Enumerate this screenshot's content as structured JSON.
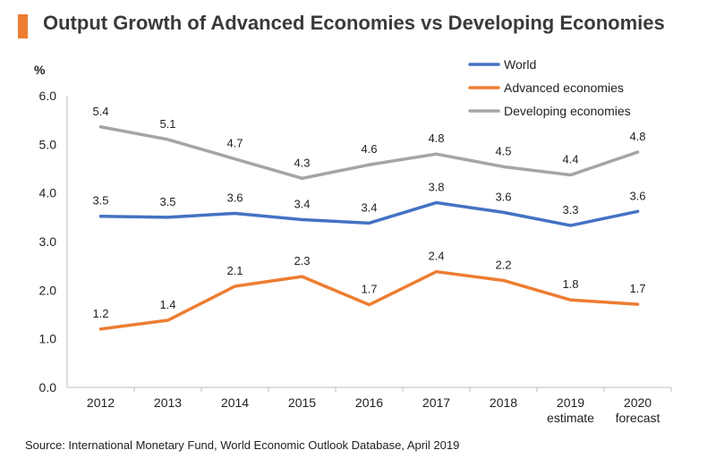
{
  "title": "Output Growth of Advanced Economies vs Developing Economies",
  "source": "Source: International Monetary Fund, World Economic Outlook Database, April 2019",
  "colors": {
    "accent": "#ed7d31",
    "world": "#4472c4",
    "advanced": "#ed7d31",
    "developing": "#a5a5a5"
  },
  "chart_data": {
    "type": "line",
    "ylabel": "%",
    "ylim": [
      0,
      6
    ],
    "yticks": [
      "0.0",
      "1.0",
      "2.0",
      "3.0",
      "4.0",
      "5.0",
      "6.0"
    ],
    "categories": [
      "2012",
      "2013",
      "2014",
      "2015",
      "2016",
      "2017",
      "2018",
      "2019",
      "2020"
    ],
    "category_sublabels": [
      "",
      "",
      "",
      "",
      "",
      "",
      "",
      "estimate",
      "forecast"
    ],
    "legend_position": "top-right",
    "grid": false,
    "series": [
      {
        "name": "World",
        "color": "#4472c4",
        "values": [
          3.52,
          3.5,
          3.58,
          3.45,
          3.38,
          3.8,
          3.6,
          3.33,
          3.62
        ],
        "labels": [
          "3.5",
          "3.5",
          "3.6",
          "3.4",
          "3.4",
          "3.8",
          "3.6",
          "3.3",
          "3.6"
        ]
      },
      {
        "name": "Advanced economies",
        "color": "#ed7d31",
        "values": [
          1.2,
          1.38,
          2.08,
          2.28,
          1.7,
          2.38,
          2.2,
          1.8,
          1.71
        ],
        "labels": [
          "1.2",
          "1.4",
          "2.1",
          "2.3",
          "1.7",
          "2.4",
          "2.2",
          "1.8",
          "1.7"
        ]
      },
      {
        "name": "Developing economies",
        "color": "#a5a5a5",
        "values": [
          5.36,
          5.1,
          4.7,
          4.3,
          4.58,
          4.8,
          4.54,
          4.37,
          4.84
        ],
        "labels": [
          "5.4",
          "5.1",
          "4.7",
          "4.3",
          "4.6",
          "4.8",
          "4.5",
          "4.4",
          "4.8"
        ]
      }
    ]
  }
}
